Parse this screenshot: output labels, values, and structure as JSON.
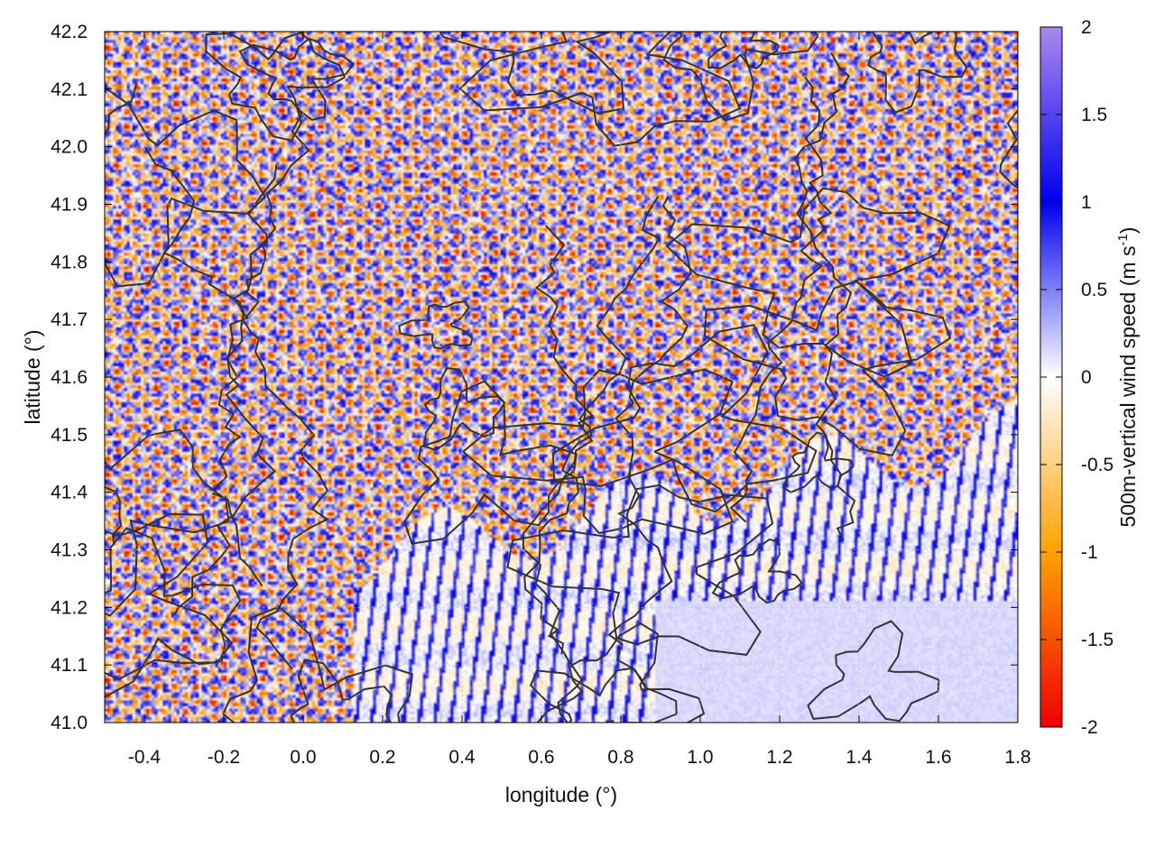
{
  "chart_data": {
    "type": "heatmap",
    "title": "",
    "xlabel": "longitude (°)",
    "ylabel": "latitude (°)",
    "xlim": [
      -0.5,
      1.8
    ],
    "ylim": [
      41.0,
      42.2
    ],
    "x_ticks": [
      "-0.4",
      "-0.2",
      "0.0",
      "0.2",
      "0.4",
      "0.6",
      "0.8",
      "1.0",
      "1.2",
      "1.4",
      "1.6",
      "1.8"
    ],
    "y_ticks": [
      "41.0",
      "41.1",
      "41.2",
      "41.3",
      "41.4",
      "41.5",
      "41.6",
      "41.7",
      "41.8",
      "41.9",
      "42.0",
      "42.1",
      "42.2"
    ],
    "colorbar": {
      "label": "500m-vertical wind speed (m s",
      "label_superscript": "-1",
      "label_suffix": ")",
      "range": [
        -2,
        2
      ],
      "ticks": [
        "2",
        "1.5",
        "1",
        "0.5",
        "0",
        "-0.5",
        "-1",
        "-1.5",
        "-2"
      ],
      "colors": [
        "#ee0000",
        "#ffa200",
        "#ffffff",
        "#0000ee",
        "#aa88ee"
      ]
    },
    "field_description": "fine-scale cellular updraft/downdraft pattern over land (west and north), smooth weak field over the sea (south-east), with black terrain contour lines",
    "contour_color": "#333333",
    "grid": true
  }
}
